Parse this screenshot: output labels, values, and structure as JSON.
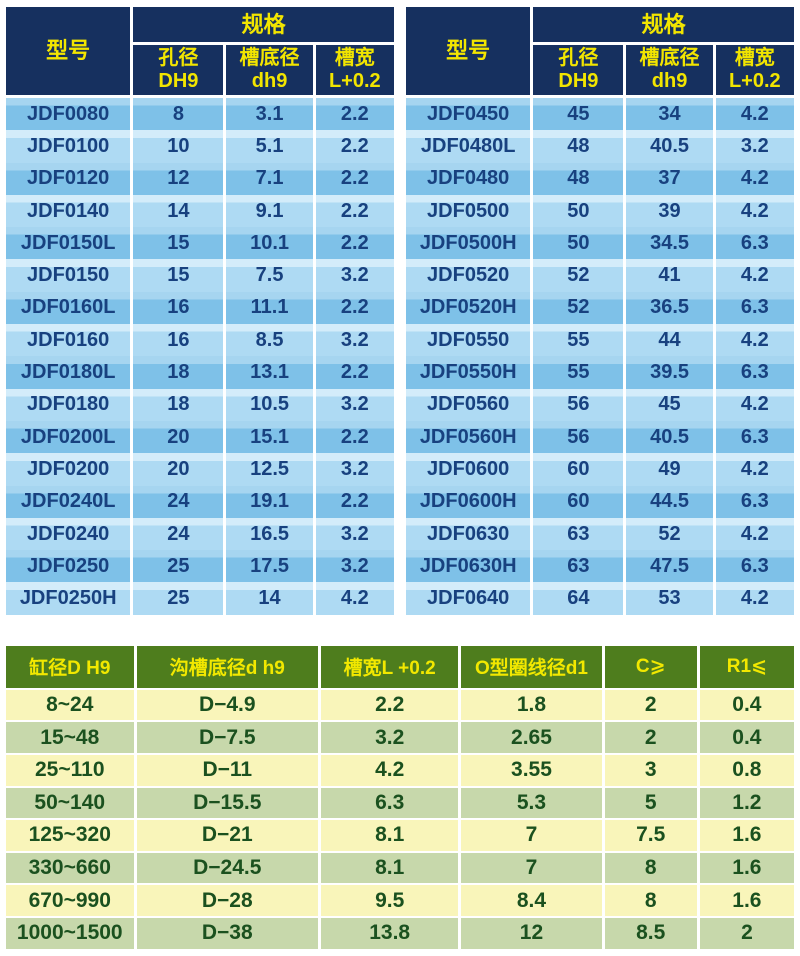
{
  "colors": {
    "header_navy": "#16305f",
    "header_yellow": "#f2e500",
    "row_blue_dark": "#7ec1e8",
    "row_blue_light": "#aedaf3",
    "text_blue": "#18417f",
    "header_green": "#4e7d1d",
    "row_pale_yellow": "#f9f5ba",
    "row_pale_green": "#c7d8ab",
    "text_green": "#1b511f"
  },
  "top_tables": {
    "header": {
      "model": "型号",
      "spec": "规格",
      "cols": [
        {
          "line1": "孔径",
          "line2": "DH9"
        },
        {
          "line1": "槽底径",
          "line2": "dh9"
        },
        {
          "line1": "槽宽",
          "line2": "L+0.2"
        }
      ]
    },
    "left_rows": [
      [
        "JDF0080",
        "8",
        "3.1",
        "2.2"
      ],
      [
        "JDF0100",
        "10",
        "5.1",
        "2.2"
      ],
      [
        "JDF0120",
        "12",
        "7.1",
        "2.2"
      ],
      [
        "JDF0140",
        "14",
        "9.1",
        "2.2"
      ],
      [
        "JDF0150L",
        "15",
        "10.1",
        "2.2"
      ],
      [
        "JDF0150",
        "15",
        "7.5",
        "3.2"
      ],
      [
        "JDF0160L",
        "16",
        "11.1",
        "2.2"
      ],
      [
        "JDF0160",
        "16",
        "8.5",
        "3.2"
      ],
      [
        "JDF0180L",
        "18",
        "13.1",
        "2.2"
      ],
      [
        "JDF0180",
        "18",
        "10.5",
        "3.2"
      ],
      [
        "JDF0200L",
        "20",
        "15.1",
        "2.2"
      ],
      [
        "JDF0200",
        "20",
        "12.5",
        "3.2"
      ],
      [
        "JDF0240L",
        "24",
        "19.1",
        "2.2"
      ],
      [
        "JDF0240",
        "24",
        "16.5",
        "3.2"
      ],
      [
        "JDF0250",
        "25",
        "17.5",
        "3.2"
      ],
      [
        "JDF0250H",
        "25",
        "14",
        "4.2"
      ]
    ],
    "right_rows": [
      [
        "JDF0450",
        "45",
        "34",
        "4.2"
      ],
      [
        "JDF0480L",
        "48",
        "40.5",
        "3.2"
      ],
      [
        "JDF0480",
        "48",
        "37",
        "4.2"
      ],
      [
        "JDF0500",
        "50",
        "39",
        "4.2"
      ],
      [
        "JDF0500H",
        "50",
        "34.5",
        "6.3"
      ],
      [
        "JDF0520",
        "52",
        "41",
        "4.2"
      ],
      [
        "JDF0520H",
        "52",
        "36.5",
        "6.3"
      ],
      [
        "JDF0550",
        "55",
        "44",
        "4.2"
      ],
      [
        "JDF0550H",
        "55",
        "39.5",
        "6.3"
      ],
      [
        "JDF0560",
        "56",
        "45",
        "4.2"
      ],
      [
        "JDF0560H",
        "56",
        "40.5",
        "6.3"
      ],
      [
        "JDF0600",
        "60",
        "49",
        "4.2"
      ],
      [
        "JDF0600H",
        "60",
        "44.5",
        "6.3"
      ],
      [
        "JDF0630",
        "63",
        "52",
        "4.2"
      ],
      [
        "JDF0630H",
        "63",
        "47.5",
        "6.3"
      ],
      [
        "JDF0640",
        "64",
        "53",
        "4.2"
      ]
    ]
  },
  "bottom_table": {
    "headers": [
      "缸径D H9",
      "沟槽底径d h9",
      "槽宽L +0.2",
      "O型圈线径d1",
      "C⩾",
      "R1⩽"
    ],
    "rows": [
      [
        "8~24",
        "D−4.9",
        "2.2",
        "1.8",
        "2",
        "0.4"
      ],
      [
        "15~48",
        "D−7.5",
        "3.2",
        "2.65",
        "2",
        "0.4"
      ],
      [
        "25~110",
        "D−11",
        "4.2",
        "3.55",
        "3",
        "0.8"
      ],
      [
        "50~140",
        "D−15.5",
        "6.3",
        "5.3",
        "5",
        "1.2"
      ],
      [
        "125~320",
        "D−21",
        "8.1",
        "7",
        "7.5",
        "1.6"
      ],
      [
        "330~660",
        "D−24.5",
        "8.1",
        "7",
        "8",
        "1.6"
      ],
      [
        "670~990",
        "D−28",
        "9.5",
        "8.4",
        "8",
        "1.6"
      ],
      [
        "1000~1500",
        "D−38",
        "13.8",
        "12",
        "8.5",
        "2"
      ]
    ]
  }
}
